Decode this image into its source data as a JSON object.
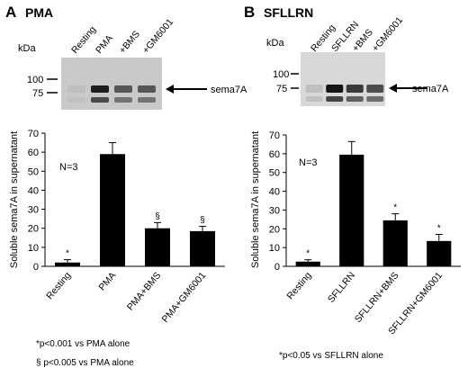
{
  "panels": [
    {
      "letter": "A",
      "name": "PMA",
      "blot": {
        "kda_label": "kDa",
        "marker_100": "100",
        "marker_75": "75",
        "lanes": [
          "Resting",
          "PMA",
          "+BMS",
          "+GM6001"
        ],
        "band_label": "sema7A",
        "band_intensity": [
          0.05,
          0.9,
          0.6,
          0.6
        ]
      },
      "n_label": "N=3",
      "footnotes": [
        "*p<0.001 vs PMA alone",
        "§ p<0.005 vs PMA alone"
      ]
    },
    {
      "letter": "B",
      "name": "SFLLRN",
      "blot": {
        "kda_label": "kDa",
        "marker_100": "100",
        "marker_75": "75",
        "lanes": [
          "Resting",
          "SFLLRN",
          "+BMS",
          "+GM6001"
        ],
        "band_label": "sema7A",
        "band_intensity": [
          0.05,
          0.95,
          0.75,
          0.65
        ]
      },
      "n_label": "N=3",
      "footnotes": [
        "*p<0.05 vs SFLLRN alone"
      ]
    }
  ],
  "chart_data": [
    {
      "type": "bar",
      "categories": [
        "Resting",
        "PMA",
        "PMA+BMS",
        "PMA+GM6001"
      ],
      "values": [
        2,
        59,
        20,
        18.5
      ],
      "errors": [
        1.5,
        6,
        3,
        2.5
      ],
      "significance": [
        "*",
        "",
        "§",
        "§"
      ],
      "title": "",
      "xlabel": "",
      "ylabel": "Soluble sema7A in supernatant",
      "ylim": [
        0,
        70
      ],
      "yticks": [
        0,
        10,
        20,
        30,
        40,
        50,
        60,
        70
      ],
      "grid": false
    },
    {
      "type": "bar",
      "categories": [
        "Resting",
        "SFLLRN",
        "SFLLRN+BMS",
        "SFLLRN+GM6001"
      ],
      "values": [
        2.5,
        59.5,
        24.5,
        13.5
      ],
      "errors": [
        1,
        7,
        3.5,
        3.5
      ],
      "significance": [
        "*",
        "",
        "*",
        "*"
      ],
      "title": "",
      "xlabel": "",
      "ylabel": "Soluble sema7A in supernatant",
      "ylim": [
        0,
        70
      ],
      "yticks": [
        0,
        10,
        20,
        30,
        40,
        50,
        60,
        70
      ],
      "grid": false
    }
  ]
}
